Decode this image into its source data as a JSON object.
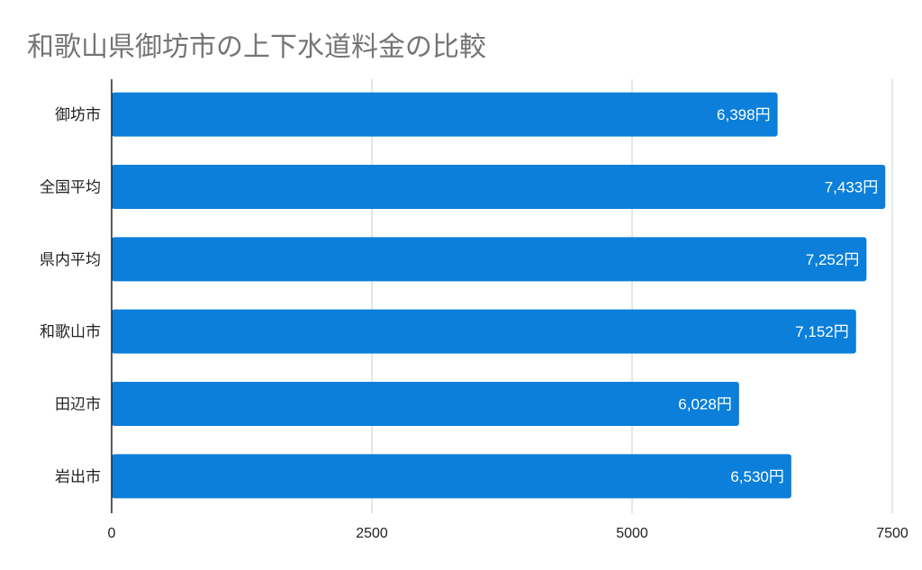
{
  "chart_data": {
    "type": "bar",
    "orientation": "horizontal",
    "title": "和歌山県御坊市の上下水道料金の比較",
    "categories": [
      "御坊市",
      "全国平均",
      "県内平均",
      "和歌山市",
      "田辺市",
      "岩出市"
    ],
    "values": [
      6398,
      7433,
      7252,
      7152,
      6028,
      6530
    ],
    "data_labels": [
      "6,398円",
      "7,433円",
      "7,252円",
      "7,152円",
      "6,028円",
      "6,530円"
    ],
    "xlim": [
      0,
      7500
    ],
    "xticks": [
      "0",
      "2500",
      "5000",
      "7500"
    ],
    "xlabel": "",
    "ylabel": "",
    "grid": true,
    "legend": "none",
    "colors": {
      "bar": "#0b7fd9",
      "grid": "#cccccc",
      "axis": "#222222",
      "title": "#757575"
    }
  }
}
